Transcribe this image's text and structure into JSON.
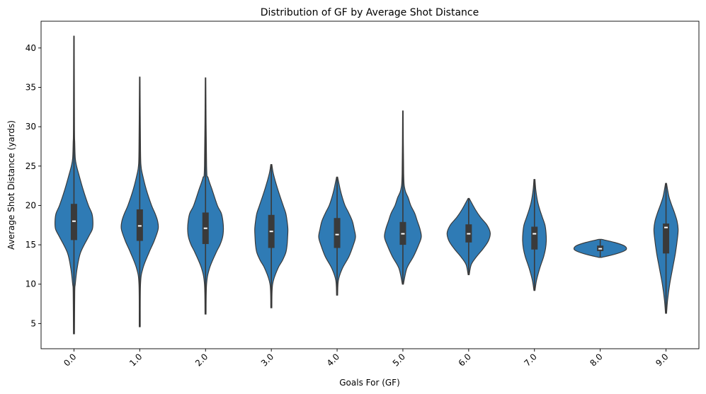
{
  "chart_data": {
    "type": "violin",
    "title": "Distribution of GF by Average Shot Distance",
    "xlabel": "Goals For (GF)",
    "ylabel": "Average Shot Distance (yards)",
    "ylim": [
      1.8,
      43.4
    ],
    "yticks": [
      5,
      10,
      15,
      20,
      25,
      30,
      35,
      40
    ],
    "ytick_labels": [
      "5",
      "10",
      "15",
      "20",
      "25",
      "30",
      "35",
      "40"
    ],
    "categories": [
      "0.0",
      "1.0",
      "2.0",
      "3.0",
      "4.0",
      "5.0",
      "6.0",
      "7.0",
      "8.0",
      "9.0"
    ],
    "grid": false,
    "legend": "none",
    "colors": {
      "fill": "#2f7bb5",
      "edge": "#3a3a3a",
      "box": "#3a3a3a",
      "median": "#ffffff",
      "axis": "#000000"
    },
    "violins": [
      {
        "category": "0.0",
        "min": 3.7,
        "q1": 15.6,
        "median": 18.0,
        "q3": 20.2,
        "max": 41.5,
        "density": [
          [
            3.7,
            0.02
          ],
          [
            9,
            0.03
          ],
          [
            10,
            0.05
          ],
          [
            12,
            0.12
          ],
          [
            14,
            0.25
          ],
          [
            16,
            0.55
          ],
          [
            17,
            0.7
          ],
          [
            18,
            0.72
          ],
          [
            19,
            0.68
          ],
          [
            20,
            0.55
          ],
          [
            22,
            0.35
          ],
          [
            24,
            0.18
          ],
          [
            25,
            0.1
          ],
          [
            26,
            0.05
          ],
          [
            28,
            0.03
          ],
          [
            30,
            0.02
          ],
          [
            41.5,
            0.01
          ]
        ]
      },
      {
        "category": "1.0",
        "min": 4.6,
        "q1": 15.5,
        "median": 17.4,
        "q3": 19.5,
        "max": 36.3,
        "density": [
          [
            4.6,
            0.02
          ],
          [
            10,
            0.03
          ],
          [
            12,
            0.12
          ],
          [
            14,
            0.35
          ],
          [
            15.5,
            0.55
          ],
          [
            17,
            0.7
          ],
          [
            18,
            0.68
          ],
          [
            19,
            0.58
          ],
          [
            20,
            0.45
          ],
          [
            22,
            0.25
          ],
          [
            24,
            0.1
          ],
          [
            25,
            0.05
          ],
          [
            27,
            0.03
          ],
          [
            36.3,
            0.01
          ]
        ]
      },
      {
        "category": "2.0",
        "min": 6.2,
        "q1": 15.1,
        "median": 17.1,
        "q3": 19.1,
        "max": 36.2,
        "density": [
          [
            6.2,
            0.02
          ],
          [
            10,
            0.04
          ],
          [
            12,
            0.15
          ],
          [
            14,
            0.4
          ],
          [
            15,
            0.55
          ],
          [
            16,
            0.65
          ],
          [
            17,
            0.68
          ],
          [
            18,
            0.66
          ],
          [
            19,
            0.6
          ],
          [
            20,
            0.45
          ],
          [
            22,
            0.25
          ],
          [
            23.5,
            0.1
          ],
          [
            25,
            0.04
          ],
          [
            36.2,
            0.01
          ]
        ]
      },
      {
        "category": "3.0",
        "min": 7.0,
        "q1": 14.6,
        "median": 16.7,
        "q3": 18.8,
        "max": 25.2,
        "density": [
          [
            7,
            0.02
          ],
          [
            10,
            0.05
          ],
          [
            12,
            0.25
          ],
          [
            13,
            0.42
          ],
          [
            14,
            0.55
          ],
          [
            15,
            0.6
          ],
          [
            16,
            0.62
          ],
          [
            17,
            0.63
          ],
          [
            18,
            0.6
          ],
          [
            19,
            0.55
          ],
          [
            20,
            0.45
          ],
          [
            22,
            0.25
          ],
          [
            24,
            0.08
          ],
          [
            25.2,
            0.02
          ]
        ]
      },
      {
        "category": "4.0",
        "min": 8.6,
        "q1": 14.6,
        "median": 16.3,
        "q3": 18.4,
        "max": 23.6,
        "density": [
          [
            8.6,
            0.02
          ],
          [
            10.5,
            0.05
          ],
          [
            12,
            0.2
          ],
          [
            13.5,
            0.45
          ],
          [
            15,
            0.62
          ],
          [
            16,
            0.7
          ],
          [
            17,
            0.65
          ],
          [
            18,
            0.58
          ],
          [
            19,
            0.45
          ],
          [
            20,
            0.3
          ],
          [
            21,
            0.2
          ],
          [
            22,
            0.12
          ],
          [
            23.6,
            0.02
          ]
        ]
      },
      {
        "category": "5.0",
        "min": 10.0,
        "q1": 15.0,
        "median": 16.4,
        "q3": 17.9,
        "max": 32.0,
        "density": [
          [
            10,
            0.02
          ],
          [
            12,
            0.15
          ],
          [
            13.5,
            0.4
          ],
          [
            15,
            0.6
          ],
          [
            16,
            0.7
          ],
          [
            17,
            0.65
          ],
          [
            18,
            0.55
          ],
          [
            19,
            0.45
          ],
          [
            20,
            0.3
          ],
          [
            21,
            0.2
          ],
          [
            22,
            0.08
          ],
          [
            24,
            0.03
          ],
          [
            32,
            0.01
          ]
        ]
      },
      {
        "category": "6.0",
        "min": 11.2,
        "q1": 15.3,
        "median": 16.4,
        "q3": 17.6,
        "max": 20.9,
        "density": [
          [
            11.2,
            0.02
          ],
          [
            12.5,
            0.1
          ],
          [
            13.5,
            0.3
          ],
          [
            14.5,
            0.55
          ],
          [
            15.5,
            0.75
          ],
          [
            16.5,
            0.82
          ],
          [
            17.5,
            0.7
          ],
          [
            18.5,
            0.45
          ],
          [
            19.5,
            0.25
          ],
          [
            20.9,
            0.02
          ]
        ]
      },
      {
        "category": "7.0",
        "min": 9.2,
        "q1": 14.4,
        "median": 16.4,
        "q3": 17.3,
        "max": 23.3,
        "density": [
          [
            9.2,
            0.02
          ],
          [
            10.5,
            0.08
          ],
          [
            12,
            0.2
          ],
          [
            13.5,
            0.35
          ],
          [
            14.5,
            0.42
          ],
          [
            15.5,
            0.45
          ],
          [
            16.5,
            0.44
          ],
          [
            17.5,
            0.4
          ],
          [
            18.5,
            0.3
          ],
          [
            19.5,
            0.2
          ],
          [
            20.5,
            0.12
          ],
          [
            22,
            0.05
          ],
          [
            23.3,
            0.02
          ]
        ]
      },
      {
        "category": "8.0",
        "min": 13.4,
        "q1": 14.2,
        "median": 14.5,
        "q3": 14.9,
        "max": 15.7,
        "density": [
          [
            13.4,
            0.05
          ],
          [
            13.8,
            0.55
          ],
          [
            14.2,
            0.9
          ],
          [
            14.5,
            1.0
          ],
          [
            14.9,
            0.9
          ],
          [
            15.3,
            0.55
          ],
          [
            15.7,
            0.05
          ]
        ]
      },
      {
        "category": "9.0",
        "min": 6.3,
        "q1": 13.9,
        "median": 17.2,
        "q3": 17.7,
        "max": 22.8,
        "density": [
          [
            6.3,
            0.02
          ],
          [
            8,
            0.06
          ],
          [
            10,
            0.14
          ],
          [
            12,
            0.25
          ],
          [
            14,
            0.36
          ],
          [
            16,
            0.44
          ],
          [
            17,
            0.46
          ],
          [
            18,
            0.42
          ],
          [
            19,
            0.33
          ],
          [
            20,
            0.22
          ],
          [
            21,
            0.12
          ],
          [
            22,
            0.06
          ],
          [
            22.8,
            0.02
          ]
        ]
      }
    ]
  }
}
